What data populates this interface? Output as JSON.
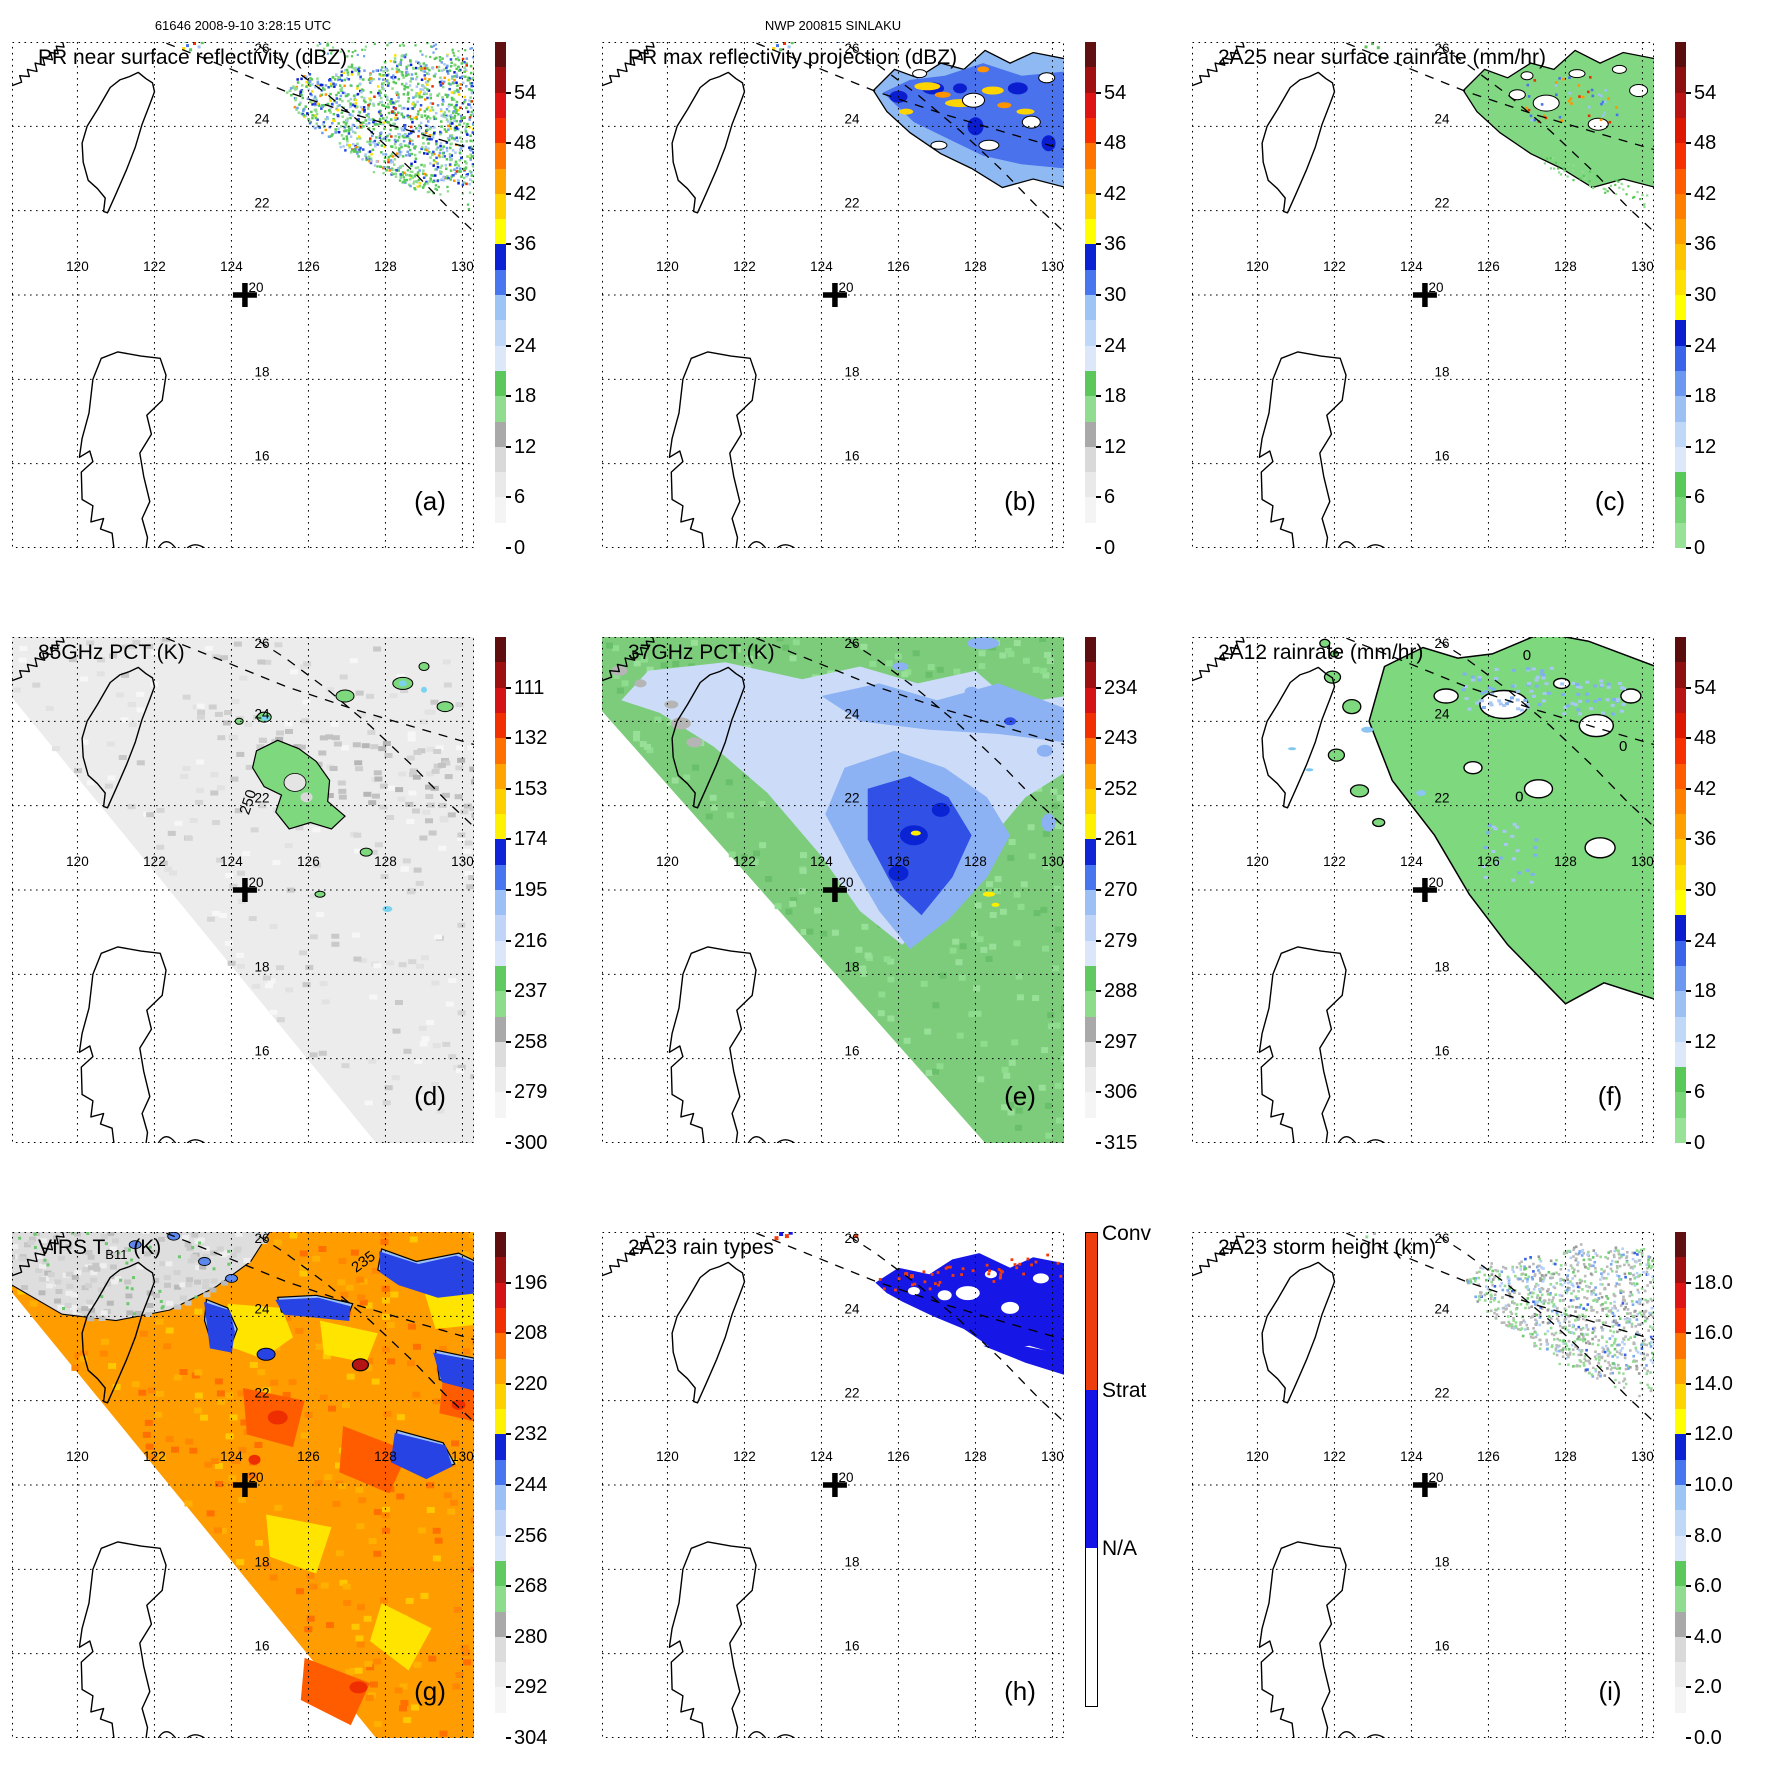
{
  "header": {
    "left_title": "61646 2008-9-10 3:28:15 UTC",
    "center_title": "NWP 200815 SINLAKU"
  },
  "axes": {
    "lon_labels": [
      "120",
      "122",
      "124",
      "126",
      "128",
      "130"
    ],
    "lat_labels": [
      "26",
      "24",
      "22",
      "20",
      "18",
      "16"
    ],
    "lon_range": [
      118.3,
      130.3
    ],
    "lat_range": [
      14,
      26
    ],
    "grid_spacing_deg": 2,
    "center_marker": {
      "symbol": "+",
      "lon": 124.35,
      "lat": 20,
      "hidden_label": "20"
    }
  },
  "palettes": {
    "dbz": [
      "#ffffff",
      "#f4f4f4",
      "#e9e9e9",
      "#d9d9d9",
      "#a9a9a9",
      "#90dc90",
      "#5cc85c",
      "#dce8fa",
      "#c0d8f8",
      "#9cc4f4",
      "#4876ee",
      "#0a22d4",
      "#ffff00",
      "#ffd400",
      "#ffa400",
      "#ff7400",
      "#f63000",
      "#dc1414",
      "#a01010",
      "#601010"
    ],
    "rain": [
      "#98e298",
      "#78d678",
      "#58c858",
      "#dce8fa",
      "#c0d8f8",
      "#9cc0f4",
      "#6c98f0",
      "#3c64e8",
      "#0a1ed0",
      "#ffff00",
      "#ffe000",
      "#ffc400",
      "#ffa000",
      "#ff8000",
      "#ff5c00",
      "#f63000",
      "#dc1800",
      "#b81414",
      "#8c1010",
      "#5a0d0d"
    ],
    "pct": [
      "#ffffff",
      "#f5f5f5",
      "#ebebeb",
      "#dcdcdc",
      "#a9a9a9",
      "#8cdc8c",
      "#60ca60",
      "#dce6fa",
      "#c0d4f8",
      "#9cc0f6",
      "#4876ee",
      "#0e24d6",
      "#fff200",
      "#ffd000",
      "#ffa400",
      "#ff7000",
      "#f03000",
      "#d41414",
      "#9c1010",
      "#5e0e0e"
    ],
    "raintype": {
      "conv": "#ee3d0c",
      "strat": "#1414e6",
      "na": "#ffffff"
    }
  },
  "chart_data": {
    "type": "heatmap",
    "layout": "3x3 grid of satellite map panels (TRMM overpass of Typhoon Sinlaku), each with its own colorbar; dotted lat/lon grid, Taiwan and Luzon coastlines, dashed PR swath edge lines, bold + at storm center 124.35E 20N",
    "map_extent": {
      "lon": [
        118.3,
        130.3
      ],
      "lat": [
        14,
        26
      ]
    },
    "panels": [
      {
        "id": "a",
        "letter": "(a)",
        "title": "PR near surface reflectivity (dBZ)",
        "colorbar": {
          "palette": "dbz",
          "units": "dBZ",
          "ticks": [
            "54",
            "48",
            "42",
            "36",
            "30",
            "24",
            "18",
            "12",
            "6",
            "0"
          ],
          "range": [
            0,
            60
          ]
        },
        "features": "Speckled radar echo band NE of Taiwan (lon 125.3-130.3, lat 22.5-25.8): mostly 15-30 dBZ (green/light blue) with embedded 36-48 dBZ convective cells (yellow/orange); isolated echoes near 122.8E 25.9N"
      },
      {
        "id": "b",
        "letter": "(b)",
        "title": "PR max reflectivity projection (dBZ)",
        "colorbar": {
          "palette": "dbz",
          "units": "dBZ",
          "ticks": [
            "54",
            "48",
            "42",
            "36",
            "30",
            "24",
            "18",
            "12",
            "6",
            "0"
          ],
          "range": [
            0,
            60
          ]
        },
        "features": "Contiguous rain shield in PR swath outlined in black; mostly 24-33 dBZ (blue) with banded 36-45 dBZ cores (yellow/orange) and echo-free holes"
      },
      {
        "id": "c",
        "letter": "(c)",
        "title": "2A25 near surface rainrate (mm/hr)",
        "colorbar": {
          "palette": "rain",
          "units": "mm/hr",
          "ticks": [
            "54",
            "48",
            "42",
            "36",
            "30",
            "24",
            "18",
            "12",
            "6",
            "0"
          ],
          "range": [
            0,
            60
          ]
        },
        "features": "Rain area outlined in black, mostly 1-6 mm/hr (green) with scattered 10-45 mm/hr pixels (blue/orange/red)"
      },
      {
        "id": "d",
        "letter": "(d)",
        "title": "85GHz PCT (K)",
        "colorbar": {
          "palette": "pct",
          "units": "K",
          "ticks": [
            "111",
            "132",
            "153",
            "174",
            "195",
            "216",
            "237",
            "258",
            "279",
            "300"
          ],
          "range": [
            90,
            300
          ]
        },
        "contour_labels": [
          {
            "text": "250",
            "lon": 124.55,
            "lat": 22.05,
            "rot": -72
          }
        ],
        "features": "Wide TMI swath, mostly 260-300 K light gray; ice-scattering regions below 250 K outlined in black (green, 237-250 K) with a few <216 K pixels (light blue); 250 K contour labeled"
      },
      {
        "id": "e",
        "letter": "(e)",
        "title": "37GHz PCT (K)",
        "colorbar": {
          "palette": "pct",
          "units": "K",
          "ticks": [
            "234",
            "243",
            "252",
            "261",
            "270",
            "279",
            "288",
            "297",
            "306",
            "315"
          ],
          "range": [
            225,
            315
          ]
        },
        "features": "Swath-filling field: background ~285-295 K (green); emission/scattering rainband region 261-281 K (pale to deep blue) east and southeast of Taiwan; local minima near 261 K (tiny yellow)"
      },
      {
        "id": "f",
        "letter": "(f)",
        "title": "2A12 rainrate (mm/hr)",
        "colorbar": {
          "palette": "rain",
          "units": "mm/hr",
          "ticks": [
            "54",
            "48",
            "42",
            "36",
            "30",
            "24",
            "18",
            "12",
            "6",
            "0"
          ],
          "range": [
            0,
            60
          ]
        },
        "contour_labels": [
          {
            "text": "0",
            "lon": 127.0,
            "lat": 25.45,
            "rot": 0
          },
          {
            "text": "0",
            "lon": 129.5,
            "lat": 23.3,
            "rot": 0
          },
          {
            "text": "0",
            "lon": 126.8,
            "lat": 22.1,
            "rot": 0
          }
        ],
        "features": "TMI rain regions: broad 1-6 mm/hr areas (green) bounded by black 0 mm/hr contours with embedded 8-18 mm/hr patches (light blue)"
      },
      {
        "id": "g",
        "letter": "(g)",
        "title": "VIRS TB11 (K)",
        "title_main": "VIRS T",
        "title_sub": "B11",
        "title_suffix": " (K)",
        "colorbar": {
          "palette": "pct",
          "units": "K",
          "ticks": [
            "196",
            "208",
            "220",
            "232",
            "244",
            "256",
            "268",
            "280",
            "292",
            "304"
          ],
          "range": [
            184,
            304
          ]
        },
        "contour_labels": [
          {
            "text": "235",
            "lon": 127.5,
            "lat": 25.2,
            "rot": -36
          }
        ],
        "features": "11-um brightness temperature: warm/clear scene >270 K (gray, northwest); cold cirrus canopy 208-232 K (orange/yellow) with coldest cells <208 K (red); warmer cloud edges 232-244 K (blue) outlined in black; 235 K contour labeled"
      },
      {
        "id": "h",
        "letter": "(h)",
        "title": "2A23 rain types",
        "colorbar": {
          "type": "categorical",
          "categories": [
            "Conv",
            "Strat",
            "N/A"
          ]
        },
        "features": "Stratiform rain (blue) covers most of the PR swath rain area; scattered convective pixels (orange-red) along the northern band edge; no-rain left white"
      },
      {
        "id": "i",
        "letter": "(i)",
        "title": "2A23 storm height (km)",
        "colorbar": {
          "palette": "dbz",
          "units": "km",
          "ticks": [
            "18.0",
            "16.0",
            "14.0",
            "12.0",
            "10.0",
            "8.0",
            "6.0",
            "4.0",
            "2.0",
            "0.0"
          ],
          "range": [
            0,
            20
          ]
        },
        "features": "Storm heights mostly 2-6 km (gray/green speckle) with 7-10 km cells (light blue/blue) inside the PR swath band"
      }
    ]
  }
}
